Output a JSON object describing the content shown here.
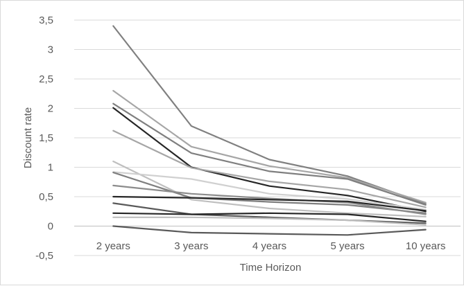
{
  "chart_data": {
    "type": "line",
    "title": "",
    "xlabel": "Time Horizon",
    "ylabel": "Discount  rate",
    "categories": [
      "2 years",
      "3 years",
      "4 years",
      "5 years",
      "10 years"
    ],
    "ylim": [
      -0.5,
      3.5
    ],
    "yticks": [
      -0.5,
      0,
      0.5,
      1,
      1.5,
      2,
      2.5,
      3,
      3.5
    ],
    "ytick_labels": [
      "-0,5",
      "0",
      "0,5",
      "1",
      "1,5",
      "2",
      "2,5",
      "3",
      "3,5"
    ],
    "grid": true,
    "legend": "none",
    "series": [
      {
        "values": [
          3.4,
          1.7,
          1.13,
          0.85,
          0.38
        ],
        "color": "#808080"
      },
      {
        "values": [
          2.3,
          1.35,
          1.02,
          0.82,
          0.4
        ],
        "color": "#a6a6a6"
      },
      {
        "values": [
          2.08,
          1.24,
          0.93,
          0.8,
          0.36
        ],
        "color": "#7f7f7f"
      },
      {
        "values": [
          2.01,
          1.0,
          0.68,
          0.52,
          0.25
        ],
        "color": "#262626"
      },
      {
        "values": [
          1.62,
          0.99,
          0.76,
          0.62,
          0.32
        ],
        "color": "#a6a6a6"
      },
      {
        "values": [
          1.1,
          0.45,
          0.3,
          0.22,
          0.16
        ],
        "color": "#bfbfbf"
      },
      {
        "values": [
          0.92,
          0.8,
          0.55,
          0.46,
          0.28
        ],
        "color": "#d0d0d0"
      },
      {
        "values": [
          0.91,
          0.48,
          0.41,
          0.36,
          0.22
        ],
        "color": "#7f7f7f"
      },
      {
        "values": [
          0.69,
          0.55,
          0.47,
          0.4,
          0.2
        ],
        "color": "#8c8c8c"
      },
      {
        "values": [
          0.5,
          0.48,
          0.45,
          0.42,
          0.26
        ],
        "color": "#262626"
      },
      {
        "values": [
          0.39,
          0.2,
          0.15,
          0.1,
          0.05
        ],
        "color": "#595959"
      },
      {
        "values": [
          0.22,
          0.2,
          0.22,
          0.2,
          0.08
        ],
        "color": "#262626"
      },
      {
        "values": [
          0.15,
          0.15,
          0.13,
          0.1,
          0.02
        ],
        "color": "#bfbfbf"
      },
      {
        "values": [
          0.0,
          -0.11,
          -0.13,
          -0.15,
          -0.06
        ],
        "color": "#595959"
      }
    ]
  }
}
